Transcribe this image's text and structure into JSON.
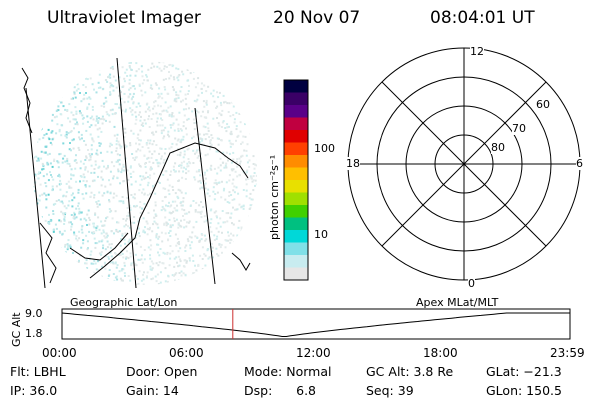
{
  "header": {
    "title": "Ultraviolet Imager",
    "date": "20 Nov 07",
    "time": "08:04:01 UT"
  },
  "colorbar": {
    "label": "photon cm⁻²s⁻¹",
    "ticks": [
      "100",
      "10"
    ],
    "colors": [
      "#000040",
      "#3a0066",
      "#5a0088",
      "#c00040",
      "#e00000",
      "#ff4000",
      "#ff8c00",
      "#ffbf00",
      "#e8e000",
      "#a0e000",
      "#40d000",
      "#00c080",
      "#00d8d8",
      "#80e0e8",
      "#c8ecf0",
      "#e6e6e6"
    ]
  },
  "polar": {
    "mlt_labels": {
      "top": "12",
      "left": "18",
      "right": "6",
      "bottom": "0"
    },
    "lat_labels": [
      "60",
      "70",
      "80"
    ]
  },
  "timeline": {
    "left_label": "Geographic Lat/Lon",
    "right_label": "Apex MLat/MLT",
    "axis_title": "GC Alt",
    "y_ticks": [
      "9.0",
      "1.8"
    ],
    "x_ticks": [
      "00:00",
      "06:00",
      "12:00",
      "18:00",
      "23:59"
    ],
    "marker_hour": 8.067,
    "marker_color": "#cc3030"
  },
  "info": {
    "filter": "Flt: LBHL",
    "ip": "IP: 36.0",
    "door": "Door: Open",
    "gain": "Gain: 14",
    "mode": "Mode: Normal",
    "dsp": "Dsp:      6.8",
    "gc_alt": "GC Alt: 3.8 Re",
    "seq": "Seq: 39",
    "glat": "GLat: −21.3",
    "glon": "GLon: 150.5"
  }
}
